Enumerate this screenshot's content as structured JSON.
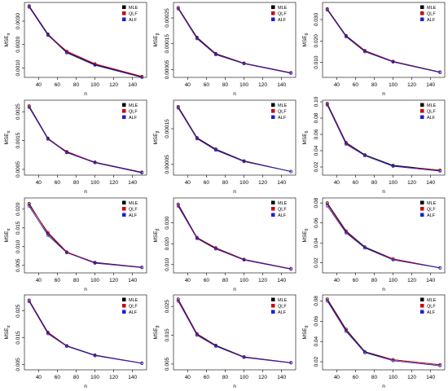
{
  "chart_data": [
    {
      "type": "line",
      "ylabel": "MSE",
      "ylabel_sub": "α",
      "xlabel": "n",
      "x": [
        30,
        50,
        70,
        100,
        150
      ],
      "ylim": [
        0.0006,
        0.0038
      ],
      "yticks": [
        "0.0010",
        "0.0020",
        "0.0030"
      ],
      "ytick_values": [
        0.001,
        0.002,
        0.003
      ],
      "series": [
        {
          "name": "MLE",
          "values": [
            0.00365,
            0.00245,
            0.00168,
            0.00115,
            0.00062
          ]
        },
        {
          "name": "QLF",
          "values": [
            0.00362,
            0.00242,
            0.00172,
            0.00118,
            0.00064
          ]
        },
        {
          "name": "ALF",
          "values": [
            0.0036,
            0.0024,
            0.00165,
            0.00112,
            0.0006
          ]
        }
      ]
    },
    {
      "type": "line",
      "ylabel": "MSE",
      "ylabel_sub": "β",
      "xlabel": "n",
      "x": [
        30,
        50,
        70,
        100,
        150
      ],
      "ylim": [
        2e-05,
        0.00031
      ],
      "yticks": [
        "0.00005",
        "0.00015",
        "0.00025"
      ],
      "ytick_values": [
        5e-05,
        0.00015,
        0.00025
      ],
      "series": [
        {
          "name": "MLE",
          "values": [
            0.00029,
            0.000175,
            0.000112,
            7.5e-05,
            3.8e-05
          ]
        },
        {
          "name": "QLF",
          "values": [
            0.000288,
            0.000172,
            0.00011,
            7.4e-05,
            3.7e-05
          ]
        },
        {
          "name": "ALF",
          "values": [
            0.000285,
            0.00017,
            0.000108,
            7.3e-05,
            3.6e-05
          ]
        }
      ]
    },
    {
      "type": "line",
      "ylabel": "MSE",
      "ylabel_sub": "δ",
      "xlabel": "n",
      "x": [
        30,
        50,
        70,
        100,
        150
      ],
      "ylim": [
        0.003,
        0.038
      ],
      "yticks": [
        "0.010",
        "0.020",
        "0.030"
      ],
      "ytick_values": [
        0.01,
        0.02,
        0.03
      ],
      "series": [
        {
          "name": "MLE",
          "values": [
            0.035,
            0.0225,
            0.0155,
            0.0105,
            0.0055
          ]
        },
        {
          "name": "QLF",
          "values": [
            0.0348,
            0.0222,
            0.0153,
            0.0104,
            0.0054
          ]
        },
        {
          "name": "ALF",
          "values": [
            0.0345,
            0.022,
            0.015,
            0.0102,
            0.0053
          ]
        }
      ]
    },
    {
      "type": "line",
      "ylabel": "MSE",
      "ylabel_sub": "α",
      "xlabel": "n",
      "x": [
        30,
        50,
        70,
        100,
        150
      ],
      "ylim": [
        0.0003,
        0.0029
      ],
      "yticks": [
        "0.0005",
        "0.0015",
        "0.0025"
      ],
      "ytick_values": [
        0.0005,
        0.0015,
        0.0025
      ],
      "series": [
        {
          "name": "MLE",
          "values": [
            0.0027,
            0.00158,
            0.0011,
            0.00075,
            0.0004
          ]
        },
        {
          "name": "QLF",
          "values": [
            0.00268,
            0.00156,
            0.00112,
            0.00074,
            0.00039
          ]
        },
        {
          "name": "ALF",
          "values": [
            0.00265,
            0.00155,
            0.00108,
            0.00073,
            0.00038
          ]
        }
      ]
    },
    {
      "type": "line",
      "ylabel": "MSE",
      "ylabel_sub": "β",
      "xlabel": "n",
      "x": [
        30,
        50,
        70,
        100,
        150
      ],
      "ylim": [
        2e-05,
        0.00023
      ],
      "yticks": [
        "0.00005",
        "0.00015"
      ],
      "ytick_values": [
        5e-05,
        0.00015
      ],
      "series": [
        {
          "name": "MLE",
          "values": [
            0.000212,
            0.000125,
            9.3e-05,
            6e-05,
            3e-05
          ]
        },
        {
          "name": "QLF",
          "values": [
            0.00021,
            0.000123,
            9.1e-05,
            5.9e-05,
            3e-05
          ]
        },
        {
          "name": "ALF",
          "values": [
            0.000208,
            0.000122,
            9e-05,
            5.8e-05,
            3e-05
          ]
        }
      ]
    },
    {
      "type": "line",
      "ylabel": "MSE",
      "ylabel_sub": "δ",
      "xlabel": "n",
      "x": [
        30,
        50,
        70,
        100,
        150
      ],
      "ylim": [
        0.01,
        0.102
      ],
      "yticks": [
        "0.02",
        "0.04",
        "0.06",
        "0.08",
        "0.10"
      ],
      "ytick_values": [
        0.02,
        0.04,
        0.06,
        0.08,
        0.1
      ],
      "series": [
        {
          "name": "MLE",
          "values": [
            0.098,
            0.05,
            0.035,
            0.022,
            0.016
          ]
        },
        {
          "name": "QLF",
          "values": [
            0.097,
            0.049,
            0.034,
            0.021,
            0.016
          ]
        },
        {
          "name": "ALF",
          "values": [
            0.096,
            0.048,
            0.034,
            0.021,
            0.015
          ]
        }
      ]
    },
    {
      "type": "line",
      "ylabel": "MSE",
      "ylabel_sub": "α",
      "xlabel": "n",
      "x": [
        30,
        50,
        70,
        100,
        150
      ],
      "ylim": [
        0.003,
        0.023
      ],
      "yticks": [
        "0.005",
        "0.010",
        "0.015",
        "0.020"
      ],
      "ytick_values": [
        0.005,
        0.01,
        0.015,
        0.02
      ],
      "series": [
        {
          "name": "MLE",
          "values": [
            0.0215,
            0.0135,
            0.0085,
            0.0058,
            0.0045
          ]
        },
        {
          "name": "QLF",
          "values": [
            0.0212,
            0.0138,
            0.0086,
            0.0057,
            0.0045
          ]
        },
        {
          "name": "ALF",
          "values": [
            0.0208,
            0.013,
            0.0084,
            0.0056,
            0.0044
          ]
        }
      ]
    },
    {
      "type": "line",
      "ylabel": "MSE",
      "ylabel_sub": "β",
      "xlabel": "n",
      "x": [
        30,
        50,
        70,
        100,
        150
      ],
      "ylim": [
        0.006,
        0.042
      ],
      "yticks": [
        "0.010",
        "0.020",
        "0.030"
      ],
      "ytick_values": [
        0.01,
        0.02,
        0.03
      ],
      "series": [
        {
          "name": "MLE",
          "values": [
            0.039,
            0.023,
            0.018,
            0.0125,
            0.008
          ]
        },
        {
          "name": "QLF",
          "values": [
            0.0385,
            0.0228,
            0.0178,
            0.0124,
            0.008
          ]
        },
        {
          "name": "ALF",
          "values": [
            0.038,
            0.0225,
            0.0175,
            0.0122,
            0.0078
          ]
        }
      ]
    },
    {
      "type": "line",
      "ylabel": "MSE",
      "ylabel_sub": "δ",
      "xlabel": "n",
      "x": [
        30,
        50,
        70,
        100,
        150
      ],
      "ylim": [
        0.01,
        0.085
      ],
      "yticks": [
        "0.02",
        "0.04",
        "0.06",
        "0.08"
      ],
      "ytick_values": [
        0.02,
        0.04,
        0.06,
        0.08
      ],
      "series": [
        {
          "name": "MLE",
          "values": [
            0.08,
            0.052,
            0.036,
            0.024,
            0.015
          ]
        },
        {
          "name": "QLF",
          "values": [
            0.079,
            0.051,
            0.035,
            0.024,
            0.015
          ]
        },
        {
          "name": "ALF",
          "values": [
            0.077,
            0.05,
            0.035,
            0.023,
            0.015
          ]
        }
      ]
    },
    {
      "type": "line",
      "ylabel": "MSE",
      "ylabel_sub": "α",
      "xlabel": "n",
      "x": [
        30,
        50,
        70,
        100,
        150
      ],
      "ylim": [
        0.003,
        0.031
      ],
      "yticks": [
        "0.005",
        "0.015",
        "0.025"
      ],
      "ytick_values": [
        0.005,
        0.015,
        0.025
      ],
      "series": [
        {
          "name": "MLE",
          "values": [
            0.029,
            0.017,
            0.012,
            0.0085,
            0.0055
          ]
        },
        {
          "name": "QLF",
          "values": [
            0.0288,
            0.0168,
            0.0119,
            0.0084,
            0.0055
          ]
        },
        {
          "name": "ALF",
          "values": [
            0.0285,
            0.0165,
            0.0118,
            0.0083,
            0.0054
          ]
        }
      ]
    },
    {
      "type": "line",
      "ylabel": "MSE",
      "ylabel_sub": "β",
      "xlabel": "n",
      "x": [
        30,
        50,
        70,
        100,
        150
      ],
      "ylim": [
        0.003,
        0.029
      ],
      "yticks": [
        "0.005",
        "0.015",
        "0.025"
      ],
      "ytick_values": [
        0.005,
        0.015,
        0.025
      ],
      "series": [
        {
          "name": "MLE",
          "values": [
            0.0275,
            0.0155,
            0.0115,
            0.0075,
            0.0055
          ]
        },
        {
          "name": "QLF",
          "values": [
            0.0272,
            0.0153,
            0.0113,
            0.0074,
            0.0055
          ]
        },
        {
          "name": "ALF",
          "values": [
            0.0268,
            0.015,
            0.0112,
            0.0073,
            0.0054
          ]
        }
      ]
    },
    {
      "type": "line",
      "ylabel": "MSE",
      "ylabel_sub": "δ",
      "xlabel": "n",
      "x": [
        30,
        50,
        70,
        100,
        150
      ],
      "ylim": [
        0.012,
        0.086
      ],
      "yticks": [
        "0.02",
        "0.04",
        "0.06",
        "0.08"
      ],
      "ytick_values": [
        0.02,
        0.04,
        0.06,
        0.08
      ],
      "series": [
        {
          "name": "MLE",
          "values": [
            0.082,
            0.052,
            0.03,
            0.022,
            0.017
          ]
        },
        {
          "name": "QLF",
          "values": [
            0.081,
            0.051,
            0.029,
            0.022,
            0.017
          ]
        },
        {
          "name": "ALF",
          "values": [
            0.08,
            0.05,
            0.029,
            0.021,
            0.016
          ]
        }
      ]
    }
  ],
  "xticks": [
    "40",
    "60",
    "80",
    "100",
    "120",
    "140"
  ],
  "xtick_values": [
    40,
    60,
    80,
    100,
    120,
    140
  ],
  "legend": {
    "position": "top-right",
    "entries": [
      {
        "name": "MLE",
        "color": "#000000"
      },
      {
        "name": "QLF",
        "color": "#cc0000"
      },
      {
        "name": "ALF",
        "color": "#1f1fcc"
      }
    ]
  },
  "colors": {
    "MLE": "#000000",
    "QLF": "#cc0000",
    "ALF": "#2020cc"
  }
}
